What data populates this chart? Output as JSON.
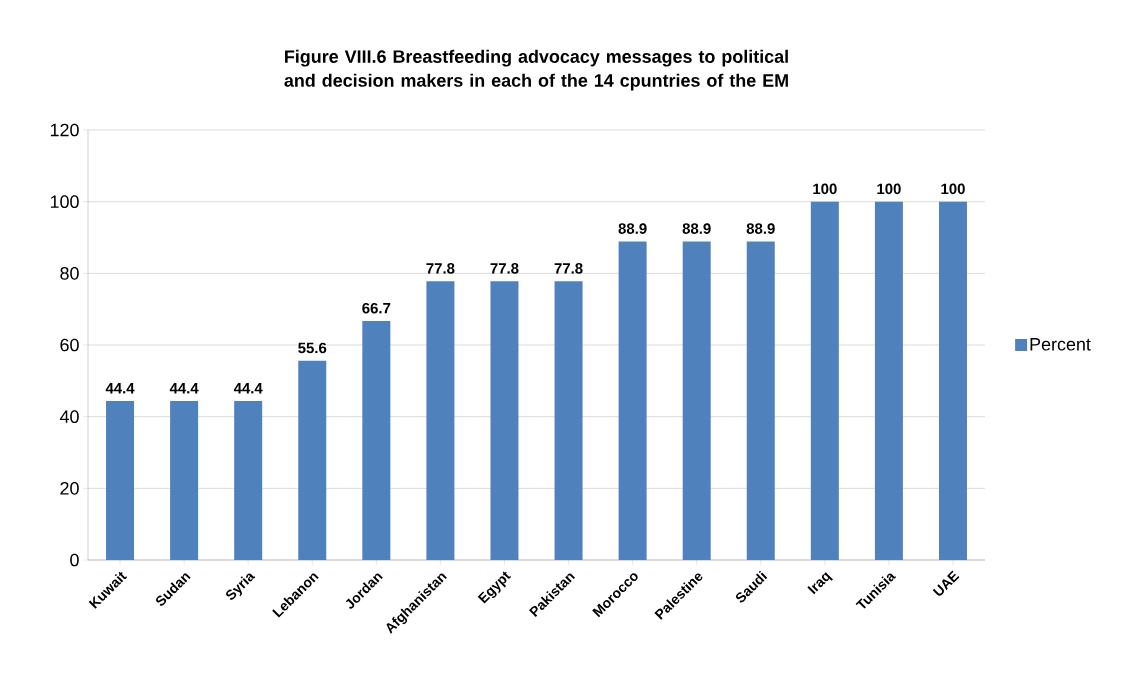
{
  "chart_data": {
    "type": "bar",
    "title": "Figure VIII.6 Breastfeeding advocacy messages to political and decision makers in each of the 14 cpuntries of the EM",
    "categories": [
      "Kuwait",
      "Sudan",
      "Syria",
      "Lebanon",
      "Jordan",
      "Afghanistan",
      "Egypt",
      "Pakistan",
      "Morocco",
      "Palestine",
      "Saudi",
      "Iraq",
      "Tunisia",
      "UAE"
    ],
    "series": [
      {
        "name": "Percent",
        "color": "#4f81bd",
        "values": [
          44.4,
          44.4,
          44.4,
          55.6,
          66.7,
          77.8,
          77.8,
          77.8,
          88.9,
          88.9,
          88.9,
          100,
          100,
          100
        ]
      }
    ],
    "ylim": [
      0,
      120
    ],
    "yticks": [
      0,
      20,
      40,
      60,
      80,
      100,
      120
    ],
    "grid": "y",
    "legend": "right",
    "data_labels": true
  }
}
